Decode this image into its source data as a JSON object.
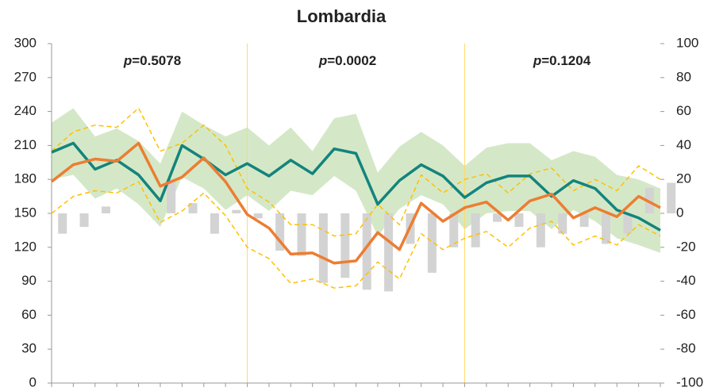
{
  "chart_data": {
    "type": "line",
    "title": "Lombardia",
    "ylim": [
      0,
      300
    ],
    "yticks": [
      0,
      30,
      60,
      90,
      120,
      150,
      180,
      210,
      240,
      270,
      300
    ],
    "y2lim": [
      -100,
      100
    ],
    "y2ticks": [
      -100,
      -80,
      -60,
      -40,
      -20,
      0,
      20,
      40,
      60,
      80,
      100
    ],
    "annotations": [
      "p=0.5078",
      "p=0.0002",
      "p=0.1204"
    ],
    "band": {
      "color": "#c6e0b4",
      "upper": [
        230,
        243,
        218,
        225,
        214,
        194,
        240,
        228,
        218,
        226,
        210,
        226,
        205,
        234,
        238,
        186,
        209,
        222,
        210,
        192,
        208,
        212,
        212,
        197,
        205,
        200,
        184,
        180,
        172
      ],
      "lower": [
        180,
        184,
        163,
        172,
        158,
        138,
        182,
        172,
        153,
        166,
        152,
        170,
        166,
        183,
        170,
        130,
        154,
        166,
        158,
        136,
        150,
        152,
        152,
        136,
        153,
        143,
        128,
        122,
        115
      ]
    },
    "series": [
      {
        "type": "bar",
        "axis": "y2",
        "color": "#d3d3d3",
        "values": [
          -12,
          -8,
          4,
          0,
          0,
          20,
          6,
          -12,
          2,
          -3,
          -22,
          -25,
          -41,
          -38,
          -45,
          -46,
          -18,
          -35,
          -20,
          -20,
          -5,
          -8,
          -20,
          -12,
          -8,
          -18,
          -12,
          15,
          18
        ]
      },
      {
        "type": "dashed",
        "color": "#ffc000",
        "values": [
          205,
          222,
          228,
          226,
          243,
          205,
          212,
          228,
          210,
          172,
          160,
          140,
          140,
          130,
          132,
          158,
          140,
          184,
          168,
          180,
          185,
          168,
          185,
          190,
          170,
          180,
          170,
          192,
          180
        ]
      },
      {
        "type": "dashed",
        "color": "#ffc000",
        "values": [
          150,
          165,
          170,
          168,
          178,
          142,
          152,
          168,
          148,
          120,
          110,
          88,
          92,
          84,
          86,
          107,
          92,
          132,
          118,
          128,
          134,
          120,
          137,
          143,
          122,
          130,
          122,
          140,
          130
        ]
      },
      {
        "type": "line",
        "color": "#13847c",
        "values": [
          204,
          212,
          189,
          197,
          184,
          161,
          210,
          198,
          184,
          194,
          183,
          197,
          185,
          207,
          203,
          158,
          179,
          193,
          183,
          164,
          177,
          183,
          183,
          165,
          179,
          172,
          153,
          146,
          135
        ]
      },
      {
        "type": "line",
        "color": "#ed7d31",
        "values": [
          178,
          193,
          198,
          196,
          212,
          174,
          182,
          199,
          178,
          149,
          137,
          114,
          115,
          106,
          108,
          133,
          118,
          159,
          143,
          155,
          160,
          144,
          161,
          167,
          146,
          155,
          147,
          165,
          155
        ]
      }
    ]
  }
}
